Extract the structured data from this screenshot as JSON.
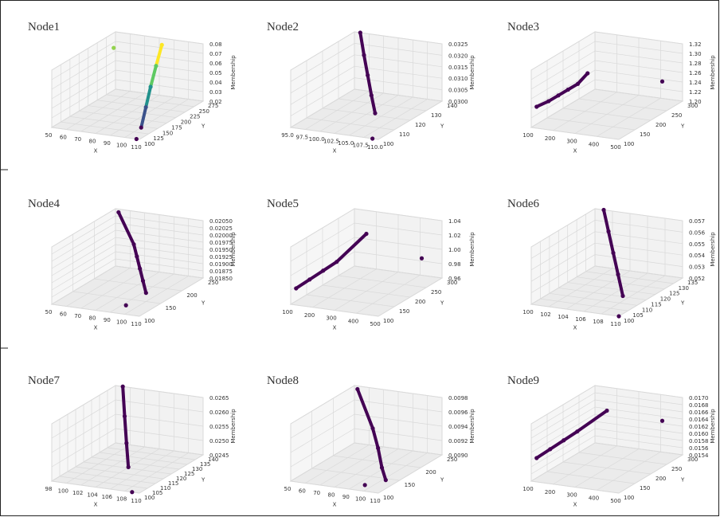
{
  "figure": {
    "border_color": "#222222",
    "pane_color": "#f2f2f2",
    "grid_color": "#d9d9d9",
    "point_color": "#440154",
    "secondary_point_color": "#3b528b"
  },
  "chart_data": [
    {
      "type": "scatter",
      "title": "Node1",
      "xlabel": "X",
      "ylabel": "Y",
      "zlabel": "Membership",
      "xticks": [
        "50",
        "60",
        "70",
        "80",
        "90",
        "100",
        "110"
      ],
      "yticks": [
        "100",
        "125",
        "150",
        "175",
        "200",
        "225",
        "250",
        "275"
      ],
      "zticks": [
        "0.02",
        "0.03",
        "0.04",
        "0.05",
        "0.06",
        "0.07",
        "0.08"
      ],
      "grid": true,
      "colormap": "viridis",
      "points": [
        {
          "x": 88,
          "y": 250,
          "z": 0.08
        },
        {
          "x": 91,
          "y": 222,
          "z": 0.065
        },
        {
          "x": 94,
          "y": 195,
          "z": 0.05
        },
        {
          "x": 97,
          "y": 170,
          "z": 0.035
        },
        {
          "x": 100,
          "y": 145,
          "z": 0.02
        },
        {
          "x": 55,
          "y": 250,
          "z": 0.07
        },
        {
          "x": 108,
          "y": 100,
          "z": 0.02
        }
      ]
    },
    {
      "type": "scatter",
      "title": "Node2",
      "xlabel": "X",
      "ylabel": "Y",
      "zlabel": "Membership",
      "xticks": [
        "95.0",
        "97.5",
        "100.0",
        "102.5",
        "105.0",
        "107.5",
        "110.0"
      ],
      "yticks": [
        "100",
        "110",
        "120",
        "130",
        "140"
      ],
      "zticks": [
        "0.0300",
        "0.0305",
        "0.0310",
        "0.0315",
        "0.0320",
        "0.0325"
      ],
      "grid": true,
      "points": [
        {
          "x": 96,
          "y": 140,
          "z": 0.0325
        },
        {
          "x": 98,
          "y": 135,
          "z": 0.0318
        },
        {
          "x": 100,
          "y": 130,
          "z": 0.0312
        },
        {
          "x": 102,
          "y": 125,
          "z": 0.0306
        },
        {
          "x": 104,
          "y": 120,
          "z": 0.0301
        },
        {
          "x": 109,
          "y": 100,
          "z": 0.03
        }
      ]
    },
    {
      "type": "scatter",
      "title": "Node3",
      "xlabel": "X",
      "ylabel": "Y",
      "zlabel": "Membership",
      "xticks": [
        "100",
        "200",
        "300",
        "400",
        "500"
      ],
      "yticks": [
        "100",
        "150",
        "200",
        "250",
        "300"
      ],
      "zticks": [
        "1.20",
        "1.22",
        "1.24",
        "1.26",
        "1.28",
        "1.30",
        "1.32"
      ],
      "grid": true,
      "points": [
        {
          "x": 110,
          "y": 110,
          "z": 1.24
        },
        {
          "x": 150,
          "y": 120,
          "z": 1.25
        },
        {
          "x": 180,
          "y": 130,
          "z": 1.26
        },
        {
          "x": 210,
          "y": 140,
          "z": 1.27
        },
        {
          "x": 240,
          "y": 150,
          "z": 1.28
        },
        {
          "x": 270,
          "y": 160,
          "z": 1.3
        },
        {
          "x": 480,
          "y": 250,
          "z": 1.26
        }
      ]
    },
    {
      "type": "scatter",
      "title": "Node4",
      "xlabel": "X",
      "ylabel": "Y",
      "zlabel": "Membership",
      "xticks": [
        "50",
        "60",
        "70",
        "80",
        "90",
        "100",
        "110"
      ],
      "yticks": [
        "100",
        "150",
        "200",
        "250"
      ],
      "zticks": [
        "0.01850",
        "0.01875",
        "0.01900",
        "0.01925",
        "0.01950",
        "0.01975",
        "0.02000",
        "0.02025",
        "0.02050"
      ],
      "grid": true,
      "points": [
        {
          "x": 55,
          "y": 240,
          "z": 0.0205
        },
        {
          "x": 80,
          "y": 190,
          "z": 0.02
        },
        {
          "x": 85,
          "y": 180,
          "z": 0.0197
        },
        {
          "x": 90,
          "y": 170,
          "z": 0.0194
        },
        {
          "x": 95,
          "y": 160,
          "z": 0.0191
        },
        {
          "x": 100,
          "y": 150,
          "z": 0.0188
        },
        {
          "x": 95,
          "y": 120,
          "z": 0.0186
        }
      ]
    },
    {
      "type": "scatter",
      "title": "Node5",
      "xlabel": "X",
      "ylabel": "Y",
      "zlabel": "Membership",
      "xticks": [
        "100",
        "200",
        "300",
        "400",
        "500"
      ],
      "yticks": [
        "100",
        "150",
        "200",
        "250",
        "300"
      ],
      "zticks": [
        "0.96",
        "0.98",
        "1.00",
        "1.02",
        "1.04"
      ],
      "grid": true,
      "points": [
        {
          "x": 110,
          "y": 110,
          "z": 0.98
        },
        {
          "x": 150,
          "y": 125,
          "z": 0.99
        },
        {
          "x": 190,
          "y": 140,
          "z": 1.0
        },
        {
          "x": 230,
          "y": 155,
          "z": 1.01
        },
        {
          "x": 300,
          "y": 200,
          "z": 1.04
        },
        {
          "x": 480,
          "y": 250,
          "z": 1.0
        }
      ]
    },
    {
      "type": "scatter",
      "title": "Node6",
      "xlabel": "X",
      "ylabel": "Y",
      "zlabel": "Membership",
      "xticks": [
        "100",
        "102",
        "104",
        "106",
        "108",
        "110"
      ],
      "yticks": [
        "100",
        "105",
        "110",
        "115",
        "120",
        "125",
        "130",
        "135"
      ],
      "zticks": [
        "0.052",
        "0.053",
        "0.054",
        "0.055",
        "0.056",
        "0.057"
      ],
      "grid": true,
      "points": [
        {
          "x": 101,
          "y": 135,
          "z": 0.057
        },
        {
          "x": 103,
          "y": 128,
          "z": 0.056
        },
        {
          "x": 105,
          "y": 121,
          "z": 0.055
        },
        {
          "x": 107,
          "y": 114,
          "z": 0.054
        },
        {
          "x": 109,
          "y": 107,
          "z": 0.053
        },
        {
          "x": 110,
          "y": 100,
          "z": 0.052
        }
      ]
    },
    {
      "type": "scatter",
      "title": "Node7",
      "xlabel": "X",
      "ylabel": "Y",
      "zlabel": "Membership",
      "xticks": [
        "98",
        "100",
        "102",
        "104",
        "106",
        "108",
        "110"
      ],
      "yticks": [
        "100",
        "105",
        "110",
        "115",
        "120",
        "125",
        "130",
        "135",
        "140"
      ],
      "zticks": [
        "0.0245",
        "0.0250",
        "0.0255",
        "0.0260",
        "0.0265"
      ],
      "grid": true,
      "points": [
        {
          "x": 99,
          "y": 140,
          "z": 0.0265
        },
        {
          "x": 101,
          "y": 132,
          "z": 0.0258
        },
        {
          "x": 103,
          "y": 124,
          "z": 0.0252
        },
        {
          "x": 105,
          "y": 116,
          "z": 0.0247
        },
        {
          "x": 109,
          "y": 100,
          "z": 0.0245
        }
      ]
    },
    {
      "type": "scatter",
      "title": "Node8",
      "xlabel": "X",
      "ylabel": "Y",
      "zlabel": "Membership",
      "xticks": [
        "50",
        "60",
        "70",
        "80",
        "90",
        "100",
        "110"
      ],
      "yticks": [
        "100",
        "150",
        "200",
        "250"
      ],
      "zticks": [
        "0.0090",
        "0.0092",
        "0.0094",
        "0.0096",
        "0.0098"
      ],
      "grid": true,
      "points": [
        {
          "x": 55,
          "y": 240,
          "z": 0.0098
        },
        {
          "x": 80,
          "y": 190,
          "z": 0.0095
        },
        {
          "x": 88,
          "y": 175,
          "z": 0.0093
        },
        {
          "x": 95,
          "y": 160,
          "z": 0.0091
        },
        {
          "x": 102,
          "y": 145,
          "z": 0.009
        },
        {
          "x": 95,
          "y": 120,
          "z": 0.009
        }
      ]
    },
    {
      "type": "scatter",
      "title": "Node9",
      "xlabel": "X",
      "ylabel": "Y",
      "zlabel": "Membership",
      "xticks": [
        "100",
        "200",
        "300",
        "400",
        "500"
      ],
      "yticks": [
        "100",
        "150",
        "200",
        "250",
        "300"
      ],
      "zticks": [
        "0.0154",
        "0.0156",
        "0.0158",
        "0.0160",
        "0.0162",
        "0.0164",
        "0.0166",
        "0.0168",
        "0.0170"
      ],
      "grid": true,
      "points": [
        {
          "x": 110,
          "y": 110,
          "z": 0.016
        },
        {
          "x": 150,
          "y": 125,
          "z": 0.0162
        },
        {
          "x": 190,
          "y": 140,
          "z": 0.0164
        },
        {
          "x": 230,
          "y": 155,
          "z": 0.0166
        },
        {
          "x": 300,
          "y": 200,
          "z": 0.017
        },
        {
          "x": 480,
          "y": 250,
          "z": 0.0166
        }
      ]
    }
  ]
}
